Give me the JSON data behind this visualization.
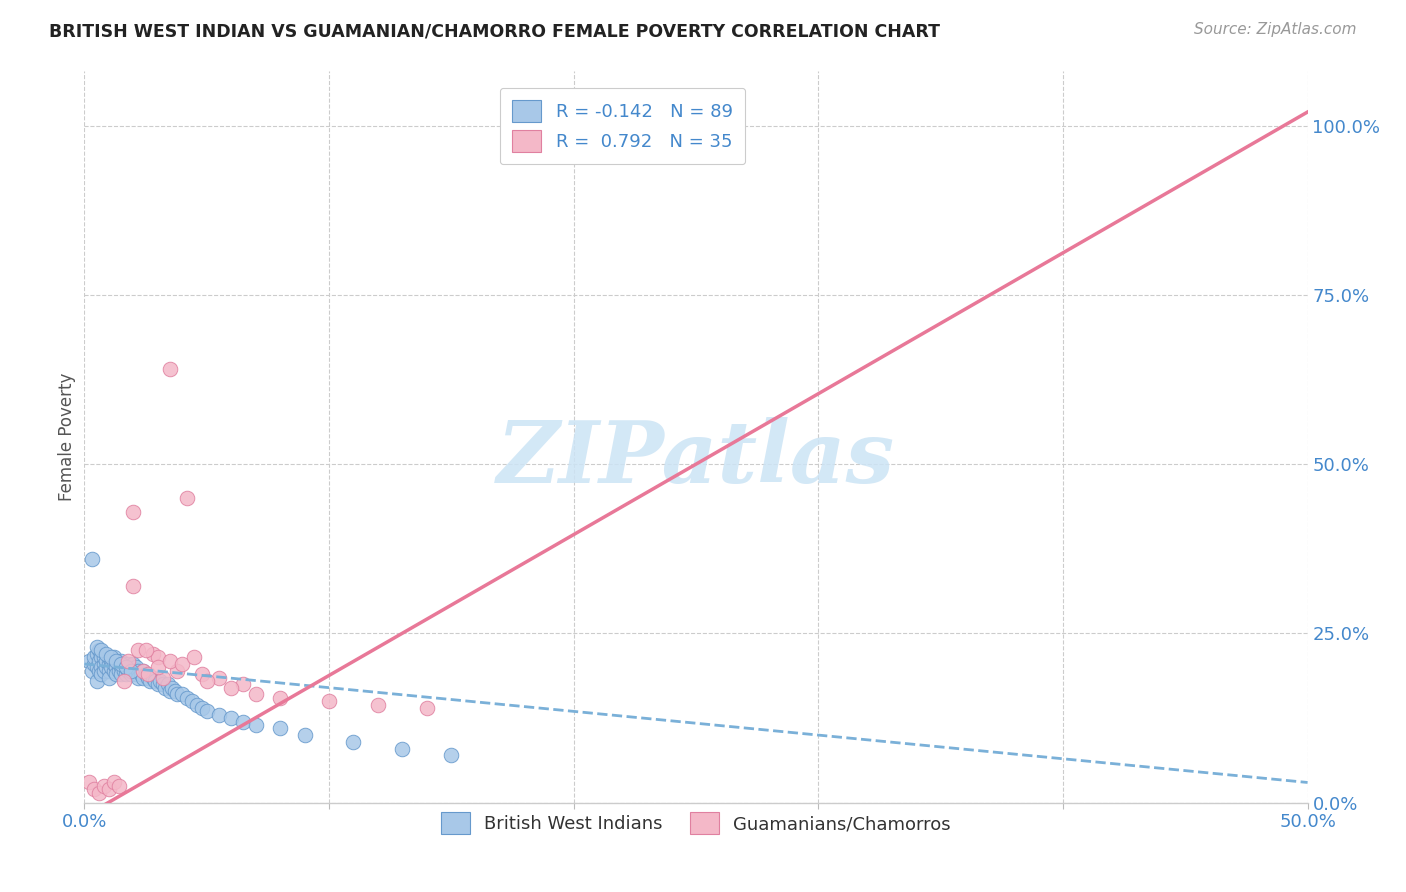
{
  "title": "BRITISH WEST INDIAN VS GUAMANIAN/CHAMORRO FEMALE POVERTY CORRELATION CHART",
  "source": "Source: ZipAtlas.com",
  "ylabel": "Female Poverty",
  "ytick_vals": [
    0.0,
    0.25,
    0.5,
    0.75,
    1.0
  ],
  "ytick_labels": [
    "0.0%",
    "25.0%",
    "50.0%",
    "75.0%",
    "100.0%"
  ],
  "xtick_vals": [
    0.0,
    0.1,
    0.2,
    0.3,
    0.4,
    0.5
  ],
  "xtick_labels": [
    "0.0%",
    "",
    "",
    "",
    "",
    "50.0%"
  ],
  "xlim": [
    0.0,
    0.5
  ],
  "ylim": [
    0.0,
    1.08
  ],
  "blue_color": "#a8c8e8",
  "blue_edge_color": "#6699cc",
  "pink_color": "#f4b8c8",
  "pink_edge_color": "#e080a0",
  "trendline_blue_color": "#7ab0d8",
  "trendline_pink_color": "#e87898",
  "watermark_color": "#cce4f5",
  "watermark_text": "ZIPatlas",
  "legend1_labels": [
    "R = -0.142   N = 89",
    "R =  0.792   N = 35"
  ],
  "legend2_labels": [
    "British West Indians",
    "Guamanians/Chamorros"
  ],
  "blue_trend_x0": 0.0,
  "blue_trend_x1": 0.5,
  "blue_trend_y0": 0.205,
  "blue_trend_y1": 0.03,
  "pink_trend_x0": 0.0,
  "pink_trend_x1": 0.5,
  "pink_trend_y0": -0.02,
  "pink_trend_y1": 1.02,
  "blue_scatter_x": [
    0.002,
    0.003,
    0.004,
    0.004,
    0.005,
    0.005,
    0.005,
    0.006,
    0.006,
    0.006,
    0.007,
    0.007,
    0.007,
    0.008,
    0.008,
    0.008,
    0.009,
    0.009,
    0.01,
    0.01,
    0.01,
    0.01,
    0.011,
    0.011,
    0.012,
    0.012,
    0.012,
    0.013,
    0.013,
    0.014,
    0.014,
    0.015,
    0.015,
    0.015,
    0.016,
    0.016,
    0.017,
    0.017,
    0.018,
    0.018,
    0.019,
    0.019,
    0.02,
    0.02,
    0.021,
    0.021,
    0.022,
    0.022,
    0.023,
    0.024,
    0.024,
    0.025,
    0.026,
    0.027,
    0.028,
    0.029,
    0.03,
    0.031,
    0.032,
    0.033,
    0.034,
    0.035,
    0.036,
    0.037,
    0.038,
    0.04,
    0.042,
    0.044,
    0.046,
    0.048,
    0.05,
    0.055,
    0.06,
    0.065,
    0.07,
    0.08,
    0.09,
    0.11,
    0.13,
    0.15,
    0.003,
    0.005,
    0.007,
    0.009,
    0.011,
    0.013,
    0.015,
    0.017,
    0.019
  ],
  "blue_scatter_y": [
    0.21,
    0.195,
    0.205,
    0.215,
    0.2,
    0.22,
    0.18,
    0.21,
    0.225,
    0.195,
    0.215,
    0.2,
    0.19,
    0.205,
    0.215,
    0.195,
    0.2,
    0.21,
    0.205,
    0.215,
    0.195,
    0.185,
    0.21,
    0.2,
    0.195,
    0.205,
    0.215,
    0.2,
    0.19,
    0.205,
    0.195,
    0.2,
    0.21,
    0.19,
    0.205,
    0.195,
    0.2,
    0.19,
    0.205,
    0.195,
    0.2,
    0.19,
    0.205,
    0.195,
    0.2,
    0.19,
    0.195,
    0.185,
    0.19,
    0.195,
    0.185,
    0.19,
    0.185,
    0.18,
    0.185,
    0.18,
    0.175,
    0.18,
    0.175,
    0.17,
    0.175,
    0.165,
    0.17,
    0.165,
    0.16,
    0.16,
    0.155,
    0.15,
    0.145,
    0.14,
    0.135,
    0.13,
    0.125,
    0.12,
    0.115,
    0.11,
    0.1,
    0.09,
    0.08,
    0.07,
    0.36,
    0.23,
    0.225,
    0.22,
    0.215,
    0.21,
    0.205,
    0.2,
    0.195
  ],
  "pink_scatter_x": [
    0.002,
    0.004,
    0.006,
    0.008,
    0.01,
    0.012,
    0.014,
    0.016,
    0.018,
    0.02,
    0.022,
    0.024,
    0.026,
    0.028,
    0.03,
    0.032,
    0.035,
    0.038,
    0.042,
    0.048,
    0.055,
    0.065,
    0.02,
    0.025,
    0.03,
    0.035,
    0.04,
    0.045,
    0.05,
    0.06,
    0.07,
    0.08,
    0.1,
    0.12,
    0.14
  ],
  "pink_scatter_y": [
    0.03,
    0.02,
    0.015,
    0.025,
    0.02,
    0.03,
    0.025,
    0.18,
    0.21,
    0.43,
    0.225,
    0.195,
    0.19,
    0.22,
    0.215,
    0.185,
    0.64,
    0.195,
    0.45,
    0.19,
    0.185,
    0.175,
    0.32,
    0.225,
    0.2,
    0.21,
    0.205,
    0.215,
    0.18,
    0.17,
    0.16,
    0.155,
    0.15,
    0.145,
    0.14
  ]
}
